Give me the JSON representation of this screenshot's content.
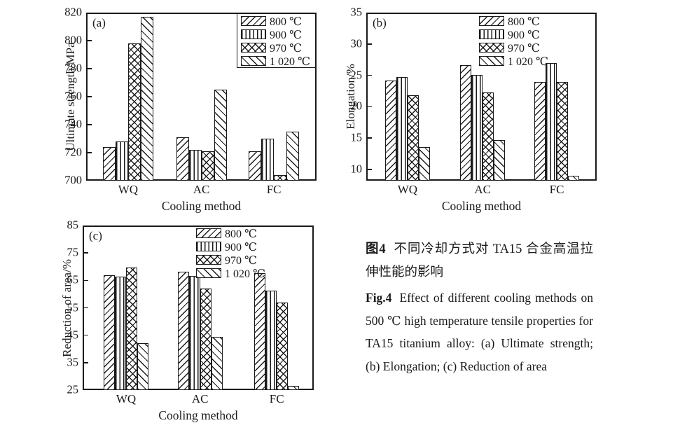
{
  "caption": {
    "zh_label": "图4",
    "zh_text": "不同冷却方式对 TA15 合金高温拉伸性能的影响",
    "en_label": "Fig.4",
    "en_text": "Effect of different cooling methods on 500 ℃ high temperature tensile properties for TA15 titanium alloy: (a) Ultimate strength; (b) Elongation; (c) Reduction of area"
  },
  "colors": {
    "line": "#1a1a1a",
    "background": "#ffffff"
  },
  "chart_data": [
    {
      "id": "a",
      "type": "bar",
      "panel_label": "(a)",
      "xlabel": "Cooling method",
      "ylabel": "Ultimate strength/MPa",
      "categories": [
        "WQ",
        "AC",
        "FC"
      ],
      "series": [
        {
          "name": "800 ℃",
          "pattern": "diag",
          "values": [
            724,
            731,
            721
          ]
        },
        {
          "name": "900 ℃",
          "pattern": "vert",
          "values": [
            728,
            722,
            730
          ]
        },
        {
          "name": "970 ℃",
          "pattern": "cross",
          "values": [
            798,
            721,
            704
          ]
        },
        {
          "name": "1 020 ℃",
          "pattern": "back",
          "values": [
            817,
            765,
            735
          ]
        }
      ],
      "ylim": [
        700,
        820
      ],
      "yticks": [
        700,
        720,
        740,
        760,
        780,
        800,
        820
      ],
      "grid": "off",
      "legend": {
        "position": "top-right",
        "border": true
      }
    },
    {
      "id": "b",
      "type": "bar",
      "panel_label": "(b)",
      "xlabel": "Cooling method",
      "ylabel": "Elongation/%",
      "categories": [
        "WQ",
        "AC",
        "FC"
      ],
      "series": [
        {
          "name": "800 ℃",
          "pattern": "diag",
          "values": [
            24.2,
            26.6,
            24.0
          ]
        },
        {
          "name": "900 ℃",
          "pattern": "vert",
          "values": [
            24.7,
            25.1,
            27.0
          ]
        },
        {
          "name": "970 ℃",
          "pattern": "cross",
          "values": [
            21.8,
            22.3,
            23.9
          ]
        },
        {
          "name": "1 020 ℃",
          "pattern": "back",
          "values": [
            13.6,
            14.7,
            9.0
          ]
        }
      ],
      "ylim": [
        8.2,
        35
      ],
      "yticks": [
        10,
        15,
        20,
        25,
        30,
        35
      ],
      "grid": "off",
      "legend": {
        "position": "top-right",
        "border": false
      }
    },
    {
      "id": "c",
      "type": "bar",
      "panel_label": "(c)",
      "xlabel": "Cooling method",
      "ylabel": "Reduction of area/%",
      "categories": [
        "WQ",
        "AC",
        "FC"
      ],
      "series": [
        {
          "name": "800 ℃",
          "pattern": "diag",
          "values": [
            66.9,
            68.1,
            67.6
          ]
        },
        {
          "name": "900 ℃",
          "pattern": "vert",
          "values": [
            66.3,
            66.7,
            61.3
          ]
        },
        {
          "name": "970 ℃",
          "pattern": "cross",
          "values": [
            69.6,
            62.0,
            57.0
          ]
        },
        {
          "name": "1 020 ℃",
          "pattern": "back",
          "values": [
            42.2,
            44.4,
            26.6
          ]
        }
      ],
      "ylim": [
        25,
        85
      ],
      "yticks": [
        25,
        35,
        45,
        55,
        65,
        75,
        85
      ],
      "grid": "off",
      "legend": {
        "position": "top-center",
        "border": false
      }
    }
  ]
}
